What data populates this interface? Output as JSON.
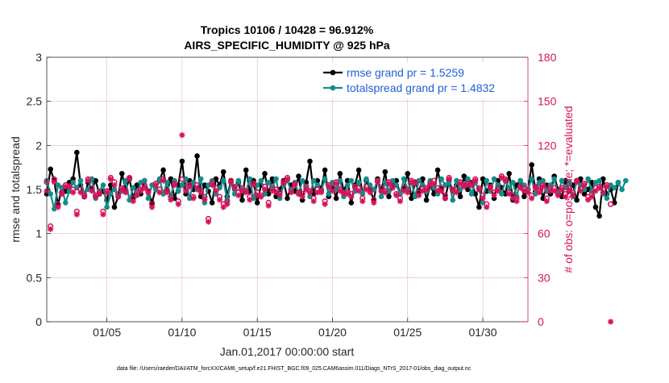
{
  "colors": {
    "rmse": "#000000",
    "spread": "#148c8c",
    "obs": "#d4145a",
    "legend_text": "#1f5fd6",
    "grid": "#e6b3c4"
  },
  "chart_data": {
    "type": "line",
    "title_line1": "Tropics 10106 / 10428 = 96.912%",
    "title_line2": "AIRS_SPECIFIC_HUMIDITY @ 925 hPa",
    "xlabel": "Jan.01,2017 00:00:00 start",
    "ylabel_left": "rmse and totalspread",
    "ylabel_right": "# of obs: o=possible; *=evaluated",
    "xlim": [
      1,
      33
    ],
    "ylim_left": [
      0,
      3
    ],
    "ylim_right": [
      0,
      180
    ],
    "x_ticks": [
      5,
      10,
      15,
      20,
      25,
      30
    ],
    "x_tick_labels": [
      "01/05",
      "01/10",
      "01/15",
      "01/20",
      "01/25",
      "01/30"
    ],
    "y_left_ticks": [
      0,
      0.5,
      1,
      1.5,
      2,
      2.5,
      3
    ],
    "y_left_tick_labels": [
      "0",
      "0.5",
      "1",
      "1.5",
      "2",
      "2.5",
      "3"
    ],
    "y_right_ticks": [
      0,
      30,
      60,
      90,
      120,
      150,
      180
    ],
    "y_right_tick_labels": [
      "0",
      "30",
      "60",
      "90",
      "120",
      "150",
      "180"
    ],
    "x_step": 0.25,
    "x_start": 1.0,
    "series": [
      {
        "name": "rmse grand pr = 1.5259",
        "axis": "left",
        "marker": "circle",
        "values": [
          1.45,
          1.73,
          1.6,
          1.32,
          1.52,
          1.48,
          1.58,
          1.62,
          1.92,
          1.55,
          1.42,
          1.58,
          1.5,
          1.6,
          1.45,
          1.48,
          1.38,
          1.55,
          1.3,
          1.42,
          1.68,
          1.5,
          1.62,
          1.4,
          1.55,
          1.45,
          1.6,
          1.48,
          1.35,
          1.52,
          1.6,
          1.72,
          1.48,
          1.62,
          1.4,
          1.55,
          1.82,
          1.45,
          1.6,
          1.5,
          1.88,
          1.42,
          1.55,
          1.48,
          1.35,
          1.62,
          1.55,
          1.7,
          1.42,
          1.6,
          1.5,
          1.58,
          1.38,
          1.72,
          1.48,
          1.6,
          1.35,
          1.55,
          1.68,
          1.45,
          1.62,
          1.42,
          1.5,
          1.6,
          1.4,
          1.55,
          1.48,
          1.65,
          1.38,
          1.58,
          1.82,
          1.45,
          1.6,
          1.5,
          1.72,
          1.42,
          1.55,
          1.4,
          1.68,
          1.48,
          1.6,
          1.35,
          1.55,
          1.72,
          1.45,
          1.6,
          1.5,
          1.38,
          1.62,
          1.48,
          1.7,
          1.42,
          1.55,
          1.6,
          1.45,
          1.52,
          1.68,
          1.4,
          1.58,
          1.48,
          1.62,
          1.38,
          1.55,
          1.45,
          1.72,
          1.5,
          1.4,
          1.6,
          1.48,
          1.55,
          1.42,
          1.65,
          1.5,
          1.58,
          1.45,
          1.3,
          1.62,
          1.48,
          1.55,
          1.4,
          1.6,
          1.52,
          1.45,
          1.68,
          1.38,
          1.55,
          1.6,
          1.42,
          1.5,
          1.78,
          1.48,
          1.62,
          1.4,
          1.55,
          1.45,
          1.65,
          1.5,
          1.42,
          1.6,
          1.48,
          1.55,
          1.38,
          1.62,
          1.45,
          1.5,
          1.58,
          1.3,
          1.2,
          1.62,
          1.45,
          1.5,
          1.35,
          1.58
        ],
        "color_key": "rmse"
      },
      {
        "name": "totalspread grand pr = 1.4832",
        "axis": "left",
        "marker": "circle",
        "values": [
          1.6,
          1.45,
          1.28,
          1.55,
          1.52,
          1.35,
          1.48,
          1.58,
          1.52,
          1.6,
          1.45,
          1.5,
          1.62,
          1.4,
          1.48,
          1.55,
          1.3,
          1.45,
          1.5,
          1.42,
          1.48,
          1.6,
          1.38,
          1.52,
          1.45,
          1.58,
          1.6,
          1.4,
          1.55,
          1.5,
          1.62,
          1.45,
          1.58,
          1.42,
          1.6,
          1.48,
          1.55,
          1.62,
          1.4,
          1.58,
          1.5,
          1.62,
          1.35,
          1.55,
          1.6,
          1.45,
          1.52,
          1.6,
          1.38,
          1.58,
          1.45,
          1.6,
          1.5,
          1.48,
          1.62,
          1.4,
          1.55,
          1.6,
          1.45,
          1.58,
          1.52,
          1.62,
          1.4,
          1.55,
          1.6,
          1.48,
          1.58,
          1.45,
          1.6,
          1.52,
          1.42,
          1.6,
          1.55,
          1.48,
          1.62,
          1.45,
          1.58,
          1.5,
          1.6,
          1.42,
          1.55,
          1.6,
          1.48,
          1.58,
          1.45,
          1.62,
          1.55,
          1.5,
          1.6,
          1.42,
          1.58,
          1.48,
          1.6,
          1.55,
          1.45,
          1.62,
          1.5,
          1.58,
          1.42,
          1.6,
          1.55,
          1.48,
          1.6,
          1.52,
          1.45,
          1.62,
          1.55,
          1.58,
          1.38,
          1.6,
          1.5,
          1.55,
          1.62,
          1.45,
          1.58,
          1.5,
          1.35,
          1.6,
          1.48,
          1.62,
          1.55,
          1.45,
          1.6,
          1.52,
          1.58,
          1.42,
          1.6,
          1.55,
          1.5,
          1.62,
          1.45,
          1.58,
          1.6,
          1.48,
          1.55,
          1.62,
          1.45,
          1.6,
          1.52,
          1.58,
          1.42,
          1.6,
          1.55,
          1.5,
          1.62,
          1.48,
          1.58,
          1.6,
          1.45,
          1.4,
          1.55,
          1.52,
          1.58,
          1.5,
          1.6
        ],
        "color_key": "spread"
      },
      {
        "name": "possible",
        "axis": "right",
        "marker": "open-circle",
        "values": [
          95,
          65,
          97,
          80,
          88,
          93,
          92,
          90,
          75,
          90,
          86,
          97,
          91,
          86,
          88,
          75,
          89,
          98,
          95,
          87,
          91,
          89,
          98,
          84,
          88,
          90,
          93,
          89,
          80,
          94,
          90,
          97,
          89,
          85,
          94,
          82,
          97,
          91,
          93,
          85,
          93,
          89,
          85,
          70,
          95,
          91,
          85,
          80,
          82,
          96,
          92,
          88,
          91,
          89,
          85,
          94,
          88,
          86,
          92,
          81,
          91,
          90,
          88,
          95,
          98,
          90,
          94,
          88,
          87,
          92,
          89,
          84,
          90,
          89,
          82,
          93,
          91,
          95,
          90,
          88,
          88,
          87,
          92,
          91,
          84,
          92,
          89,
          83,
          96,
          91,
          89,
          95,
          92,
          87,
          84,
          91,
          90,
          96,
          95,
          88,
          91,
          91,
          94,
          96,
          91,
          91,
          86,
          98,
          90,
          90,
          95,
          93,
          94,
          94,
          97,
          91,
          86,
          80,
          92,
          88,
          91,
          99,
          97,
          88,
          86,
          84,
          92,
          91,
          90,
          86,
          92,
          89,
          93,
          84,
          91,
          91,
          88,
          91,
          87,
          91,
          88,
          96,
          91,
          94,
          85,
          87,
          91,
          92,
          90,
          93,
          80
        ],
        "color_key": "obs"
      },
      {
        "name": "evaluated",
        "axis": "right",
        "marker": "asterisk",
        "values": [
          89,
          63,
          95,
          78,
          87,
          92,
          92,
          88,
          73,
          88,
          85,
          96,
          89,
          85,
          87,
          73,
          88,
          97,
          93,
          85,
          90,
          88,
          97,
          82,
          86,
          89,
          91,
          88,
          78,
          93,
          88,
          96,
          88,
          83,
          93,
          80,
          127,
          89,
          92,
          84,
          91,
          88,
          83,
          68,
          93,
          89,
          83,
          78,
          80,
          95,
          91,
          86,
          89,
          88,
          83,
          93,
          86,
          85,
          90,
          79,
          89,
          88,
          86,
          94,
          97,
          88,
          93,
          87,
          85,
          90,
          88,
          82,
          88,
          88,
          80,
          92,
          89,
          94,
          89,
          87,
          87,
          85,
          91,
          89,
          82,
          90,
          88,
          81,
          95,
          89,
          88,
          94,
          91,
          86,
          82,
          89,
          88,
          95,
          94,
          86,
          89,
          90,
          93,
          94,
          89,
          89,
          84,
          97,
          89,
          88,
          94,
          92,
          93,
          93,
          96,
          90,
          84,
          78,
          91,
          86,
          89,
          98,
          96,
          87,
          84,
          82,
          91,
          89,
          88,
          84,
          91,
          88,
          92,
          82,
          89,
          89,
          86,
          90,
          85,
          89,
          86,
          95,
          89,
          93,
          83,
          85,
          89,
          91,
          88,
          92,
          0
        ],
        "color_key": "obs"
      }
    ],
    "legend": [
      {
        "label": "rmse grand pr = 1.5259",
        "color_key": "rmse"
      },
      {
        "label": "totalspread grand pr = 1.4832",
        "color_key": "spread"
      }
    ],
    "legend_position": "top-right",
    "grid": true
  },
  "footnote": "data file: /Users/raeder/DAI/ATM_forcXX/CAM6_setup/f.e21.FHIST_BGC.f09_025.CAM6assim.011/Diags_NTrS_2017-01/obs_diag_output.nc"
}
